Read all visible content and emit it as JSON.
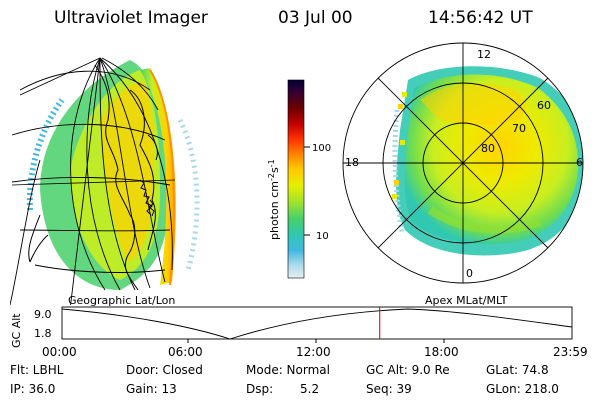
{
  "header": {
    "instrument": "Ultraviolet Imager",
    "date": "03 Jul 00",
    "time": "14:56:42 UT"
  },
  "colorbar": {
    "label_html": "photon cm<tspan dy='-4' font-size='8'>-2</tspan><tspan dy='4'>s</tspan><tspan dy='-4' font-size='8'>-1</tspan>",
    "tick_labels": [
      "100",
      "10"
    ],
    "colors": [
      "#000033",
      "#1a0033",
      "#5a0000",
      "#a00000",
      "#e00030",
      "#ff6600",
      "#ffa000",
      "#ffd200",
      "#e8ee00",
      "#c8ee20",
      "#90e030",
      "#40d070",
      "#30c8b0",
      "#40b8e0",
      "#a8d8ea",
      "#e6eef2"
    ]
  },
  "left_panel": {
    "projection_label": "Geographic Lat/Lon"
  },
  "right_panel": {
    "coords_label": "Apex MLat/MLT",
    "mlt_labels": {
      "top": "12",
      "left": "18",
      "right": "6",
      "bottom": "0"
    },
    "mlat_labels": [
      "60",
      "70",
      "80"
    ]
  },
  "timeline": {
    "ylabel": "GC Alt",
    "y_ticks": [
      "9.0",
      "1.8"
    ],
    "x_ticks": [
      "00:00",
      "06:00",
      "12:00",
      "18:00",
      "23:59"
    ],
    "current_time_fraction": 0.623
  },
  "footer": {
    "flt": "Flt: LBHL",
    "door": "Door: Closed",
    "mode": "Mode: Normal",
    "gc_alt": "GC Alt: 9.0 Re",
    "glat": "GLat:  74.8",
    "ip": "IP: 36.0",
    "gain": "Gain: 13",
    "dsp_label": "Dsp:",
    "dsp_value": "5.2",
    "seq": "Seq: 39",
    "glon": "GLon: 218.0"
  }
}
